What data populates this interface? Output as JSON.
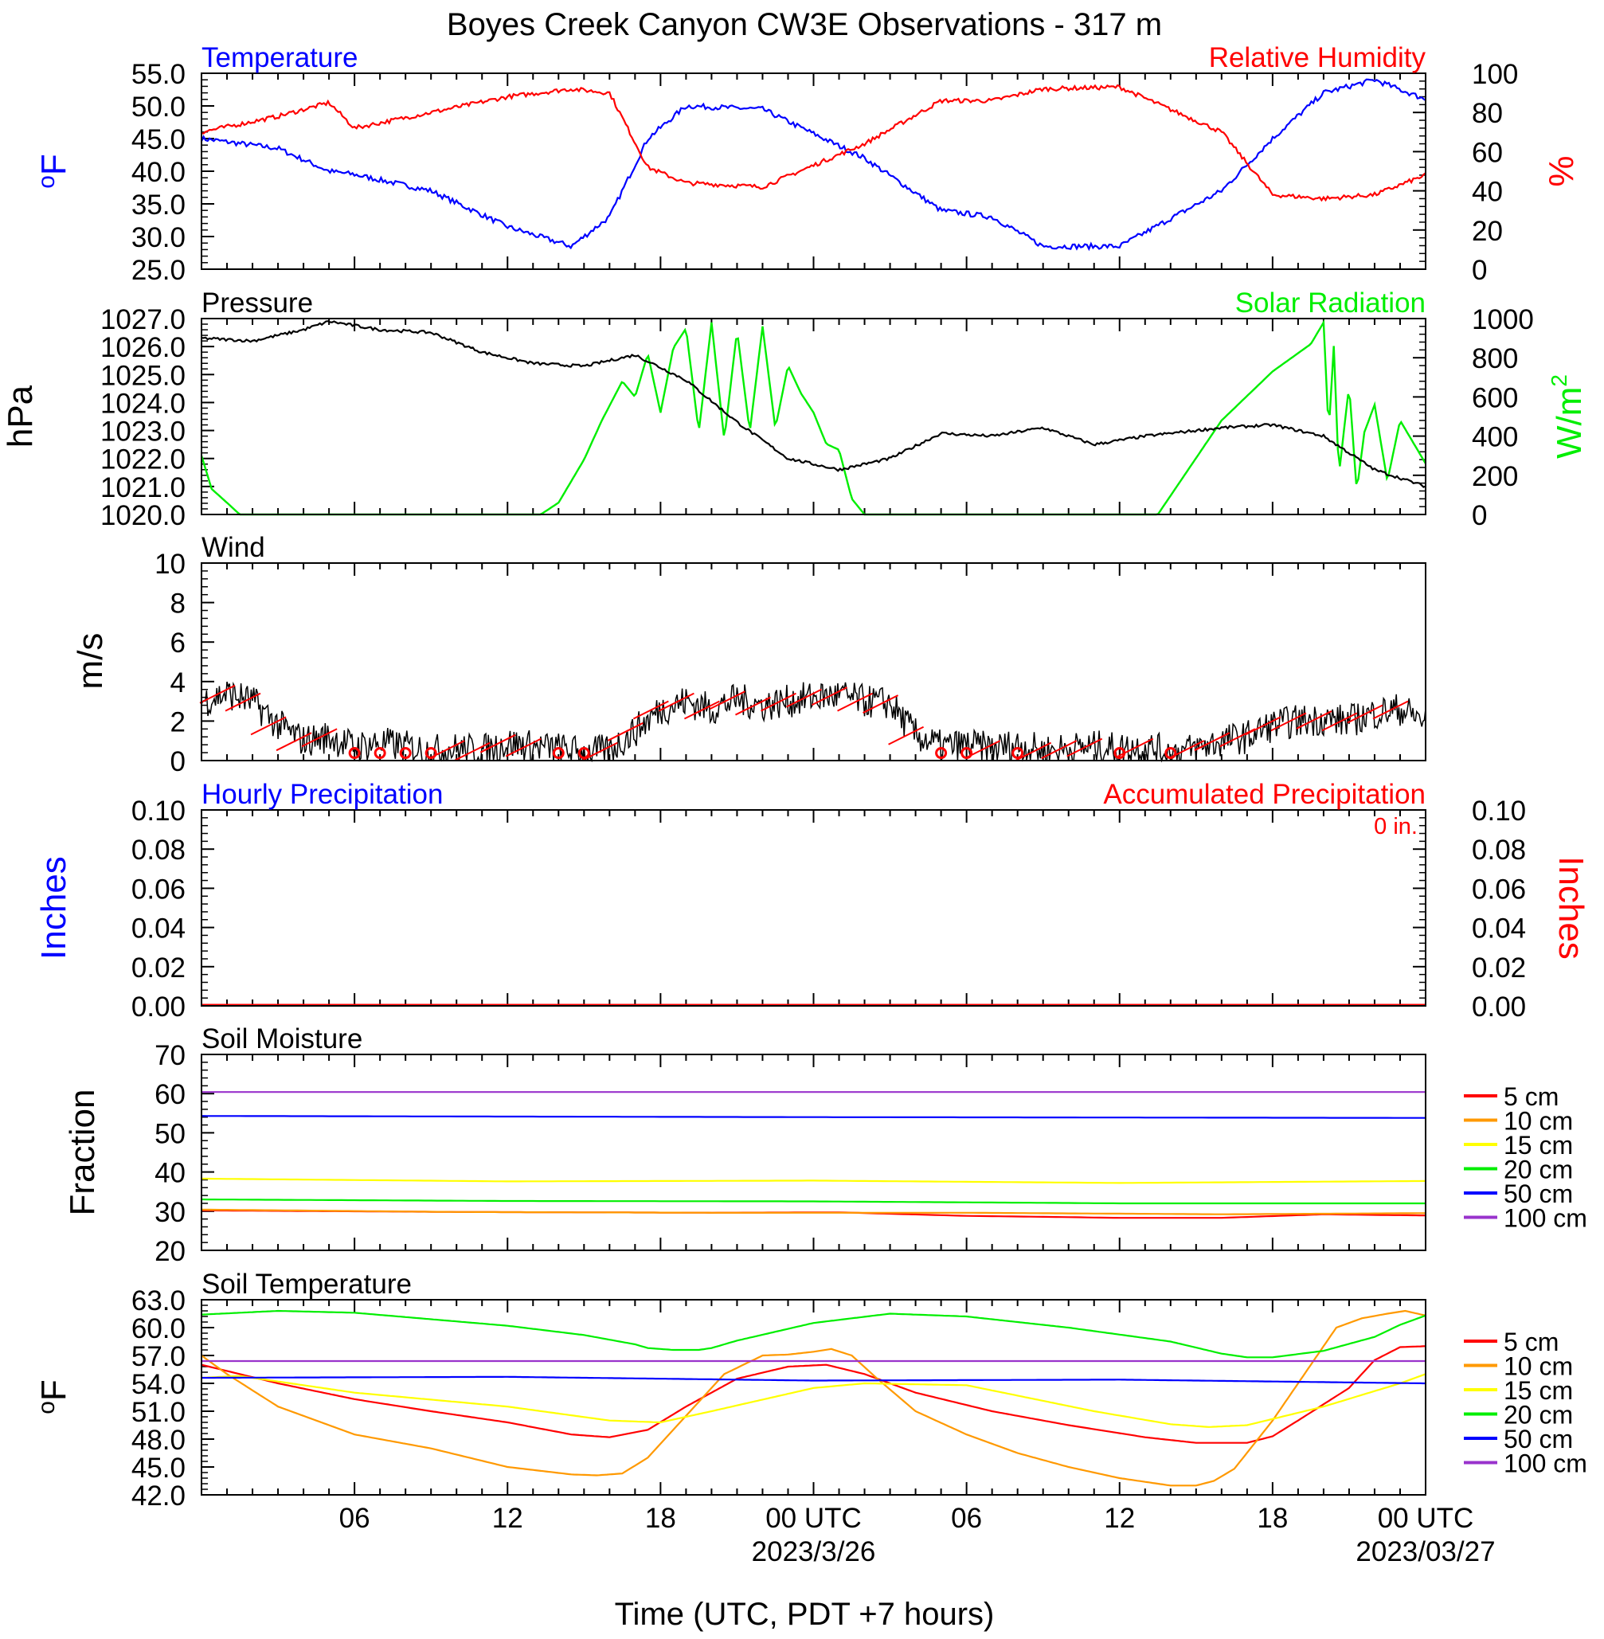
{
  "title": "Boyes Creek Canyon CW3E Observations - 317 m",
  "xlabel": "Time (UTC, PDT +7 hours)",
  "x_ticks": [
    "06",
    "12",
    "18",
    "00 UTC",
    "06",
    "12",
    "18",
    "00 UTC"
  ],
  "x_dates": [
    "2023/3/26",
    "2023/03/27"
  ],
  "colors": {
    "blue": "#0000ff",
    "red": "#ff0000",
    "green": "#00ee00",
    "black": "#000000",
    "orange": "#ff9900",
    "yellow": "#ffff00",
    "purple": "#9933cc"
  },
  "chart_data": [
    {
      "type": "line",
      "title_left": "Temperature",
      "title_right": "Relative Humidity",
      "ylabel_left": "oF",
      "ylabel_right": "%",
      "ylim_left": [
        25,
        55
      ],
      "ylim_right": [
        0,
        100
      ],
      "yticks_left": [
        "55.0",
        "50.0",
        "45.0",
        "40.0",
        "35.0",
        "30.0",
        "25.0"
      ],
      "yticks_right": [
        "100",
        "80",
        "60",
        "40",
        "20",
        "0"
      ],
      "x_hours": [
        0,
        3,
        5,
        6,
        9,
        12,
        14.5,
        16,
        17.5,
        19,
        22,
        26,
        29,
        31,
        33,
        36,
        40,
        42,
        44,
        46,
        48
      ],
      "series": [
        {
          "axis": "left",
          "values": [
            45,
            43.5,
            40,
            39.5,
            37,
            31.5,
            28.5,
            33,
            45,
            50,
            49.5,
            42,
            34,
            33,
            28.5,
            28.5,
            37,
            45,
            52,
            54,
            51
          ]
        },
        {
          "axis": "right",
          "values": [
            70,
            78,
            85,
            72,
            80,
            88,
            92,
            90,
            52,
            44,
            42,
            64,
            86,
            86,
            92,
            93,
            70,
            38,
            36,
            38,
            48
          ]
        }
      ]
    },
    {
      "type": "line",
      "title_left": "Pressure",
      "title_right": "Solar Radiation",
      "ylabel_left": "hPa",
      "ylabel_right": "W/m2",
      "ylim_left": [
        1020,
        1027
      ],
      "ylim_right": [
        0,
        1000
      ],
      "yticks_left": [
        "1027.0",
        "1026.0",
        "1025.0",
        "1024.0",
        "1023.0",
        "1022.0",
        "1021.0",
        "1020.0"
      ],
      "yticks_right": [
        "1000",
        "800",
        "600",
        "400",
        "200",
        "0"
      ],
      "series": [
        {
          "name": "Pressure",
          "axis": "left",
          "x": [
            0,
            2,
            4,
            5,
            7,
            9,
            11,
            13,
            15,
            17,
            19,
            21,
            23,
            25,
            27,
            29,
            31,
            33,
            35,
            37,
            38,
            40,
            42,
            44,
            46,
            48
          ],
          "values": [
            1026.3,
            1026.2,
            1026.6,
            1026.9,
            1026.6,
            1026.5,
            1025.8,
            1025.4,
            1025.3,
            1025.7,
            1024.8,
            1023.3,
            1022.0,
            1021.6,
            1022.0,
            1022.9,
            1022.8,
            1023.1,
            1022.5,
            1022.8,
            1022.9,
            1023.1,
            1023.2,
            1022.8,
            1021.6,
            1021.0
          ]
        },
        {
          "name": "Solar Radiation",
          "axis": "right",
          "x": [
            0,
            0.4,
            1,
            1.5,
            13.3,
            14,
            15,
            15.7,
            16.5,
            17,
            17.5,
            18,
            18.5,
            19,
            19.5,
            20,
            20.5,
            21,
            21.5,
            22,
            22.5,
            23,
            23.5,
            24,
            24.5,
            25,
            25.5,
            26,
            37.5,
            40,
            42,
            43.5,
            44,
            44.2,
            44.4,
            44.6,
            45,
            45.3,
            45.6,
            46,
            46.5,
            47,
            48
          ],
          "values": [
            300,
            130,
            60,
            0,
            0,
            60,
            280,
            480,
            680,
            600,
            820,
            520,
            850,
            950,
            420,
            980,
            380,
            940,
            420,
            960,
            440,
            760,
            620,
            520,
            360,
            330,
            80,
            0,
            0,
            480,
            730,
            870,
            980,
            420,
            860,
            200,
            660,
            120,
            420,
            560,
            170,
            480,
            260
          ]
        }
      ]
    },
    {
      "type": "line",
      "title_left": "Wind",
      "ylabel_left": "m/s",
      "ylim_left": [
        0,
        10
      ],
      "yticks_left": [
        "10",
        "8",
        "6",
        "4",
        "2",
        "0"
      ],
      "series": [
        {
          "name": "Wind speed",
          "x": [
            0,
            1,
            2,
            3,
            4,
            5,
            6,
            7,
            8,
            9,
            10,
            11,
            12,
            13,
            14,
            15,
            16,
            17,
            18,
            19,
            20,
            21,
            22,
            23,
            24,
            25,
            26,
            27,
            28,
            29,
            30,
            31,
            32,
            33,
            34,
            35,
            36,
            37,
            38,
            39,
            40,
            41,
            42,
            43,
            44,
            45,
            46,
            47,
            48
          ],
          "values": [
            3.0,
            3.4,
            3.0,
            1.8,
            1.0,
            1.2,
            0.7,
            0.9,
            0.7,
            0.5,
            0.6,
            0.5,
            0.9,
            0.7,
            0.6,
            0.4,
            0.5,
            1.5,
            2.6,
            3.0,
            2.6,
            3.1,
            2.8,
            3.0,
            3.2,
            3.3,
            3.0,
            2.9,
            1.3,
            0.7,
            0.8,
            0.6,
            0.8,
            0.5,
            0.6,
            0.7,
            0.6,
            0.7,
            0.4,
            0.6,
            1.0,
            1.2,
            1.8,
            2.0,
            2.1,
            2.0,
            2.4,
            2.6,
            2.0
          ]
        },
        {
          "name": "Calm",
          "x": [
            6,
            7,
            8,
            9,
            14,
            15,
            29,
            30,
            32,
            36,
            38
          ],
          "values": [
            0,
            0,
            0,
            0,
            0,
            0,
            0,
            0,
            0,
            0,
            0
          ]
        }
      ]
    },
    {
      "type": "line",
      "title_left": "Hourly Precipitation",
      "title_right": "Accumulated Precipitation",
      "annotation": "0 in.",
      "ylabel_left": "Inches",
      "ylabel_right": "Inches",
      "ylim_left": [
        0,
        0.1
      ],
      "ylim_right": [
        0,
        0.1
      ],
      "yticks_left": [
        "0.10",
        "0.08",
        "0.06",
        "0.04",
        "0.02",
        "0.00"
      ],
      "yticks_right": [
        "0.10",
        "0.08",
        "0.06",
        "0.04",
        "0.02",
        "0.00"
      ],
      "series": [
        {
          "name": "Hourly Precipitation",
          "x": [
            0,
            48
          ],
          "values": [
            0,
            0
          ]
        },
        {
          "name": "Accumulated Precipitation",
          "x": [
            0,
            48
          ],
          "values": [
            0,
            0
          ]
        }
      ]
    },
    {
      "type": "line",
      "title_left": "Soil Moisture",
      "ylabel_left": "Fraction",
      "ylim_left": [
        20,
        70
      ],
      "yticks_left": [
        "70",
        "60",
        "50",
        "40",
        "30",
        "20"
      ],
      "legend": [
        "5 cm",
        "10 cm",
        "15 cm",
        "20 cm",
        "50 cm",
        "100 cm"
      ],
      "series": [
        {
          "name": "5 cm",
          "x": [
            0,
            10,
            20,
            25,
            30,
            36,
            40,
            44,
            48
          ],
          "values": [
            30.2,
            29.8,
            29.6,
            29.7,
            28.8,
            28.3,
            28.3,
            29.2,
            28.9
          ]
        },
        {
          "name": "10 cm",
          "x": [
            0,
            10,
            20,
            30,
            40,
            48
          ],
          "values": [
            30.4,
            29.8,
            29.6,
            29.6,
            29.2,
            29.5
          ]
        },
        {
          "name": "15 cm",
          "x": [
            0,
            12,
            24,
            36,
            48
          ],
          "values": [
            38.3,
            37.6,
            37.8,
            37.2,
            37.7
          ]
        },
        {
          "name": "20 cm",
          "x": [
            0,
            12,
            24,
            36,
            48
          ],
          "values": [
            33.0,
            32.6,
            32.5,
            32.0,
            32.0
          ]
        },
        {
          "name": "50 cm",
          "x": [
            0,
            24,
            48
          ],
          "values": [
            54.3,
            54.0,
            53.8
          ]
        },
        {
          "name": "100 cm",
          "x": [
            0,
            48
          ],
          "values": [
            60.4,
            60.4
          ]
        }
      ]
    },
    {
      "type": "line",
      "title_left": "Soil Temperature",
      "ylabel_left": "oF",
      "ylim_left": [
        42,
        63
      ],
      "yticks_left": [
        "63.0",
        "60.0",
        "57.0",
        "54.0",
        "51.0",
        "48.0",
        "45.0",
        "42.0"
      ],
      "legend": [
        "5 cm",
        "10 cm",
        "15 cm",
        "20 cm",
        "50 cm",
        "100 cm"
      ],
      "series": [
        {
          "name": "5 cm",
          "x": [
            0,
            3,
            6,
            9,
            12,
            14.5,
            16,
            17.5,
            19,
            21,
            23,
            24.5,
            26,
            28,
            31,
            34,
            37,
            39,
            41,
            42,
            43,
            45,
            46,
            47,
            48
          ],
          "values": [
            56.0,
            54.0,
            52.3,
            51.0,
            49.8,
            48.5,
            48.2,
            49.0,
            51.5,
            54.5,
            55.8,
            56.0,
            55.0,
            53.0,
            51.0,
            49.5,
            48.2,
            47.6,
            47.6,
            48.3,
            50.0,
            53.5,
            56.5,
            57.9,
            58.0
          ]
        },
        {
          "name": "10 cm",
          "x": [
            0,
            1,
            3,
            6,
            9,
            12,
            14.5,
            15.5,
            16.5,
            17.5,
            19,
            20.5,
            22,
            23,
            24,
            24.7,
            25.5,
            26.5,
            28,
            30,
            32,
            34,
            36,
            38,
            39,
            39.7,
            40.5,
            42,
            43.5,
            44.5,
            45.5,
            46.5,
            47.2,
            48
          ],
          "values": [
            57.0,
            55.0,
            51.5,
            48.5,
            47.0,
            45.0,
            44.2,
            44.1,
            44.3,
            46.0,
            50.5,
            55.0,
            57.0,
            57.1,
            57.4,
            57.7,
            57.0,
            54.5,
            51.0,
            48.5,
            46.5,
            45.0,
            43.8,
            43.0,
            43.0,
            43.5,
            44.8,
            50.0,
            56.0,
            60.0,
            61.0,
            61.5,
            61.8,
            61.3
          ]
        },
        {
          "name": "15 cm",
          "x": [
            0,
            1.5,
            3,
            6,
            12,
            16,
            18,
            20,
            24,
            26,
            30,
            35,
            38,
            39.5,
            41,
            44,
            47,
            48
          ],
          "values": [
            54.6,
            54.8,
            54.2,
            53.0,
            51.5,
            50.0,
            49.8,
            51.0,
            53.5,
            54.0,
            53.8,
            51.0,
            49.6,
            49.3,
            49.5,
            51.5,
            54.0,
            55.0
          ]
        },
        {
          "name": "20 cm",
          "x": [
            0,
            3,
            6,
            12,
            15,
            17,
            17.5,
            18.5,
            19.5,
            20,
            21,
            24,
            27,
            30,
            34,
            38,
            40,
            41,
            42,
            44,
            46,
            47,
            48
          ],
          "values": [
            61.4,
            61.8,
            61.6,
            60.2,
            59.2,
            58.2,
            57.8,
            57.6,
            57.6,
            57.8,
            58.6,
            60.5,
            61.5,
            61.2,
            60.0,
            58.5,
            57.2,
            56.8,
            56.8,
            57.5,
            59.0,
            60.3,
            61.3
          ]
        },
        {
          "name": "50 cm",
          "x": [
            0,
            12,
            24,
            36,
            48
          ],
          "values": [
            54.6,
            54.7,
            54.3,
            54.4,
            54.0
          ]
        },
        {
          "name": "100 cm",
          "x": [
            0,
            48
          ],
          "values": [
            56.4,
            56.4
          ]
        }
      ]
    }
  ]
}
